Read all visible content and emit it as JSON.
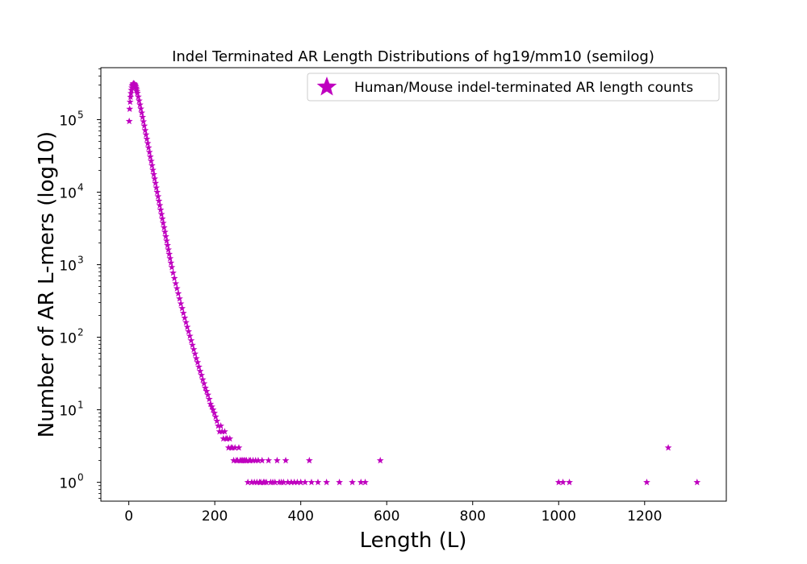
{
  "chart_data": {
    "type": "scatter",
    "title": "Indel Terminated AR Length Distributions of hg19/mm10 (semilog)",
    "xlabel": "Length (L)",
    "ylabel": "Number of AR L-mers (log10)",
    "xlim": [
      -65,
      1390
    ],
    "ylim": [
      0.55,
      520000
    ],
    "yscale": "log",
    "x_ticks": [
      0,
      200,
      400,
      600,
      800,
      1000,
      1200
    ],
    "y_ticks": [
      {
        "value": 1,
        "label": "10",
        "exp": "0"
      },
      {
        "value": 10,
        "label": "10",
        "exp": "1"
      },
      {
        "value": 100,
        "label": "10",
        "exp": "2"
      },
      {
        "value": 1000,
        "label": "10",
        "exp": "3"
      },
      {
        "value": 10000,
        "label": "10",
        "exp": "4"
      },
      {
        "value": 100000,
        "label": "10",
        "exp": "5"
      }
    ],
    "legend_position": "top-right",
    "series": [
      {
        "name": "Human/Mouse indel-terminated AR length counts",
        "color": "#bf00bf",
        "marker": "star",
        "points": [
          [
            1,
            95000
          ],
          [
            2,
            140000
          ],
          [
            3,
            175000
          ],
          [
            4,
            205000
          ],
          [
            5,
            230000
          ],
          [
            6,
            255000
          ],
          [
            7,
            275000
          ],
          [
            8,
            290000
          ],
          [
            9,
            300000
          ],
          [
            10,
            310000
          ],
          [
            11,
            315000
          ],
          [
            12,
            312000
          ],
          [
            13,
            308000
          ],
          [
            14,
            302000
          ],
          [
            15,
            295000
          ],
          [
            16,
            285000
          ],
          [
            17,
            272000
          ],
          [
            18,
            260000
          ],
          [
            19,
            246000
          ],
          [
            20,
            232000
          ],
          [
            22,
            206000
          ],
          [
            24,
            182000
          ],
          [
            26,
            160000
          ],
          [
            28,
            141000
          ],
          [
            30,
            124000
          ],
          [
            32,
            108000
          ],
          [
            34,
            94000
          ],
          [
            36,
            82000
          ],
          [
            38,
            71000
          ],
          [
            40,
            62000
          ],
          [
            42,
            54000
          ],
          [
            44,
            47000
          ],
          [
            46,
            41000
          ],
          [
            48,
            35500
          ],
          [
            50,
            30800
          ],
          [
            52,
            26800
          ],
          [
            54,
            23300
          ],
          [
            56,
            20200
          ],
          [
            58,
            17600
          ],
          [
            60,
            15300
          ],
          [
            62,
            13300
          ],
          [
            64,
            11500
          ],
          [
            66,
            10000
          ],
          [
            68,
            8700
          ],
          [
            70,
            7550
          ],
          [
            72,
            6560
          ],
          [
            74,
            5700
          ],
          [
            76,
            4950
          ],
          [
            78,
            4300
          ],
          [
            80,
            3740
          ],
          [
            82,
            3250
          ],
          [
            84,
            2820
          ],
          [
            86,
            2450
          ],
          [
            88,
            2130
          ],
          [
            90,
            1850
          ],
          [
            92,
            1610
          ],
          [
            94,
            1400
          ],
          [
            96,
            1220
          ],
          [
            98,
            1060
          ],
          [
            100,
            920
          ],
          [
            103,
            770
          ],
          [
            106,
            650
          ],
          [
            109,
            550
          ],
          [
            112,
            470
          ],
          [
            115,
            400
          ],
          [
            118,
            340
          ],
          [
            121,
            290
          ],
          [
            124,
            250
          ],
          [
            127,
            215
          ],
          [
            130,
            185
          ],
          [
            133,
            160
          ],
          [
            136,
            138
          ],
          [
            139,
            120
          ],
          [
            142,
            104
          ],
          [
            145,
            90
          ],
          [
            148,
            78
          ],
          [
            151,
            68
          ],
          [
            154,
            59
          ],
          [
            157,
            51
          ],
          [
            160,
            45
          ],
          [
            163,
            39
          ],
          [
            166,
            34
          ],
          [
            169,
            30
          ],
          [
            172,
            26
          ],
          [
            175,
            23
          ],
          [
            178,
            20
          ],
          [
            181,
            18
          ],
          [
            184,
            16
          ],
          [
            187,
            14
          ],
          [
            190,
            12
          ],
          [
            193,
            11
          ],
          [
            196,
            10
          ],
          [
            199,
            9
          ],
          [
            202,
            8
          ],
          [
            205,
            7
          ],
          [
            208,
            6
          ],
          [
            211,
            5
          ],
          [
            214,
            6
          ],
          [
            217,
            5
          ],
          [
            220,
            4
          ],
          [
            223,
            5
          ],
          [
            226,
            4
          ],
          [
            229,
            4
          ],
          [
            232,
            3
          ],
          [
            235,
            4
          ],
          [
            238,
            3
          ],
          [
            241,
            3
          ],
          [
            244,
            2
          ],
          [
            247,
            3
          ],
          [
            250,
            2
          ],
          [
            253,
            2
          ],
          [
            256,
            3
          ],
          [
            259,
            2
          ],
          [
            262,
            2
          ],
          [
            265,
            2
          ],
          [
            268,
            2
          ],
          [
            271,
            2
          ],
          [
            274,
            2
          ],
          [
            277,
            1
          ],
          [
            280,
            2
          ],
          [
            283,
            2
          ],
          [
            286,
            1
          ],
          [
            289,
            2
          ],
          [
            292,
            1
          ],
          [
            295,
            2
          ],
          [
            298,
            1
          ],
          [
            301,
            2
          ],
          [
            304,
            1
          ],
          [
            307,
            1
          ],
          [
            310,
            2
          ],
          [
            313,
            1
          ],
          [
            316,
            1
          ],
          [
            320,
            1
          ],
          [
            325,
            2
          ],
          [
            330,
            1
          ],
          [
            335,
            1
          ],
          [
            340,
            1
          ],
          [
            345,
            2
          ],
          [
            350,
            1
          ],
          [
            355,
            1
          ],
          [
            360,
            1
          ],
          [
            365,
            2
          ],
          [
            370,
            1
          ],
          [
            378,
            1
          ],
          [
            385,
            1
          ],
          [
            392,
            1
          ],
          [
            400,
            1
          ],
          [
            410,
            1
          ],
          [
            420,
            2
          ],
          [
            425,
            1
          ],
          [
            440,
            1
          ],
          [
            460,
            1
          ],
          [
            490,
            1
          ],
          [
            520,
            1
          ],
          [
            540,
            1
          ],
          [
            550,
            1
          ],
          [
            585,
            2
          ],
          [
            1000,
            1
          ],
          [
            1010,
            1
          ],
          [
            1025,
            1
          ],
          [
            1205,
            1
          ],
          [
            1255,
            3
          ],
          [
            1322,
            1
          ]
        ]
      }
    ]
  }
}
